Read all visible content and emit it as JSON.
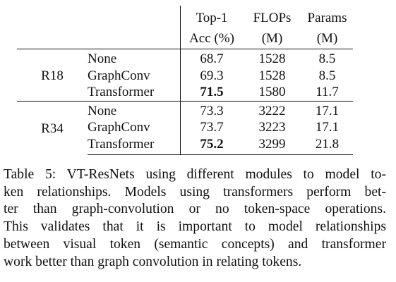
{
  "table": {
    "header": {
      "col_top1_line1": "Top-1",
      "col_top1_line2": "Acc (%)",
      "col_flops_line1": "FLOPs",
      "col_flops_line2": "(M)",
      "col_params_line1": "Params",
      "col_params_line2": "(M)"
    },
    "groups": [
      {
        "backbone": "R18",
        "rows": [
          {
            "module": "None",
            "top1": "68.7",
            "flops": "1528",
            "params": "8.5",
            "best": false
          },
          {
            "module": "GraphConv",
            "top1": "69.3",
            "flops": "1528",
            "params": "8.5",
            "best": false
          },
          {
            "module": "Transformer",
            "top1": "71.5",
            "flops": "1580",
            "params": "11.7",
            "best": true
          }
        ]
      },
      {
        "backbone": "R34",
        "rows": [
          {
            "module": "None",
            "top1": "73.3",
            "flops": "3222",
            "params": "17.1",
            "best": false
          },
          {
            "module": "GraphConv",
            "top1": "73.7",
            "flops": "3223",
            "params": "17.1",
            "best": false
          },
          {
            "module": "Transformer",
            "top1": "75.2",
            "flops": "3299",
            "params": "21.8",
            "best": true
          }
        ]
      }
    ]
  },
  "caption": {
    "lines": [
      "Table 5: VT-ResNets using different modules to model to-",
      "ken relationships. Models using transformers perform bet-",
      "ter than graph-convolution or no token-space operations.",
      "This validates that it is important to model relationships",
      "between visual token (semantic concepts) and transformer",
      "work better than graph convolution in relating tokens."
    ]
  }
}
